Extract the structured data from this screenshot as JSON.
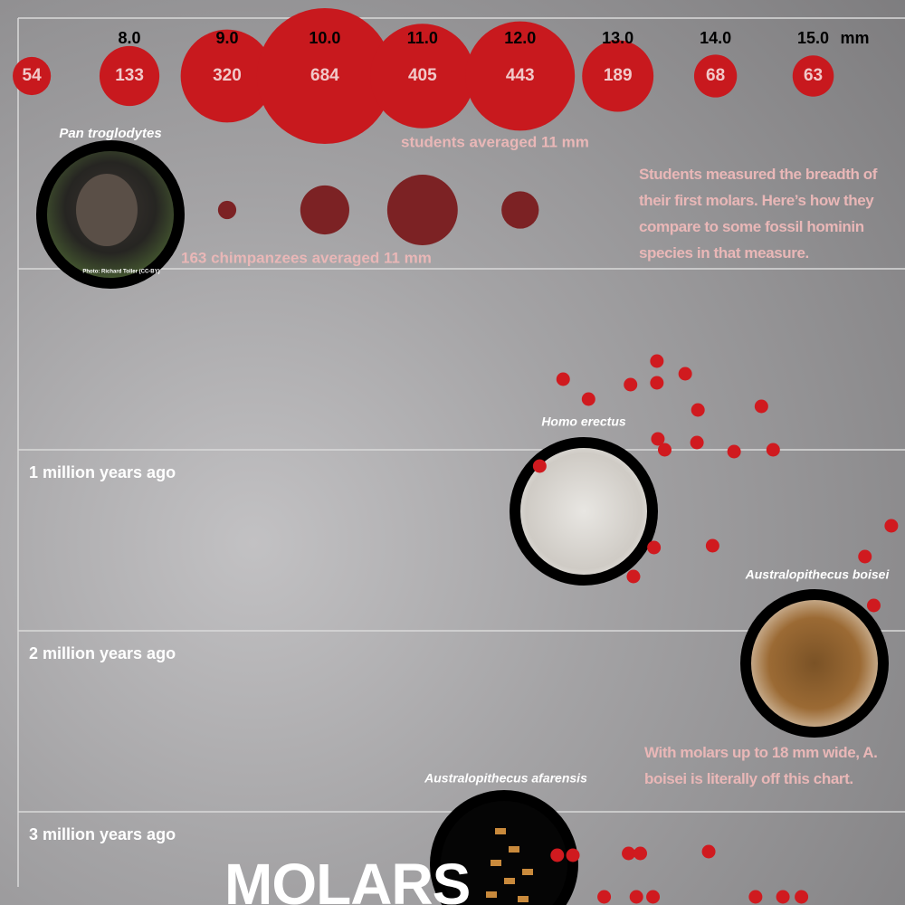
{
  "chart_data": {
    "type": "bubble",
    "title": "MOLARS",
    "x_unit": "mm",
    "xlim": [
      6.86,
      15.94
    ],
    "xticks": [
      {
        "value": 8,
        "label": "8.0"
      },
      {
        "value": 9,
        "label": "9.0"
      },
      {
        "value": 10,
        "label": "10.0"
      },
      {
        "value": 11,
        "label": "11.0"
      },
      {
        "value": 12,
        "label": "12.0"
      },
      {
        "value": 13,
        "label": "13.0"
      },
      {
        "value": 14,
        "label": "14.0"
      },
      {
        "value": 15,
        "label": "15.0"
      }
    ],
    "ylim": [
      0,
      3.5
    ],
    "yticks": [
      {
        "value": 1,
        "label": "1 million years ago"
      },
      {
        "value": 2,
        "label": "2 million years ago"
      },
      {
        "value": 3,
        "label": "3 million years ago"
      }
    ],
    "students": {
      "x": [
        7,
        8,
        9,
        10,
        11,
        12,
        13,
        14,
        15
      ],
      "counts": [
        54,
        133,
        320,
        684,
        405,
        443,
        189,
        68,
        63
      ],
      "color": "#c8191e",
      "annotation": "students averaged 11 mm"
    },
    "chimpanzees": {
      "name": "Pan troglodytes",
      "x": [
        9,
        10,
        11,
        12
      ],
      "counts": [
        6,
        43,
        89,
        25
      ],
      "color": "#7c2224",
      "annotation": "163 chimpanzees averaged 11 mm",
      "photo_credit": "Photo: Richard Toller (CC-BY)"
    },
    "fossil_color": "#d01a1f",
    "fossils": [
      {
        "name": "Homo erectus",
        "x": [
          12.44,
          12.7,
          13.13,
          13.4,
          13.4,
          13.69,
          13.82,
          14.47,
          13.41,
          13.48,
          13.81,
          14.19,
          14.59,
          12.2,
          13.37,
          13.97,
          13.16
        ],
        "y": [
          0.61,
          0.72,
          0.64,
          0.51,
          0.63,
          0.58,
          0.78,
          0.76,
          0.94,
          1.0,
          0.96,
          1.01,
          1.0,
          1.09,
          1.54,
          1.53,
          1.7
        ]
      },
      {
        "name": "Australopithecus boisei",
        "x": [
          15.8,
          15.53,
          15.62
        ],
        "y": [
          1.42,
          1.59,
          1.86
        ]
      },
      {
        "name": "Australopithecus afarensis",
        "x": [
          12.38,
          12.54,
          13.11,
          13.23,
          13.93,
          12.86,
          13.19,
          13.36,
          14.41,
          14.69,
          14.88
        ],
        "y": [
          3.24,
          3.24,
          3.23,
          3.23,
          3.22,
          3.47,
          3.47,
          3.47,
          3.47,
          3.47,
          3.47
        ]
      }
    ],
    "annotations": [
      "Students measured the breadth of their first molars. Here’s how they compare to some fossil hominin species in that measure.",
      "With molars up to 18 mm wide, A. boisei is literally off this chart."
    ]
  }
}
